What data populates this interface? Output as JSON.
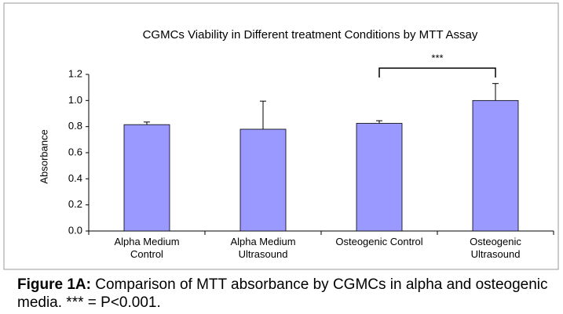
{
  "chart_data": {
    "type": "bar",
    "title": "CGMCs Viability in Different treatment Conditions by MTT Assay",
    "y_label": "Absorbance",
    "categories": [
      "Alpha Medium\nControl",
      "Alpha Medium\nUltrasound",
      "Osteogenic Control",
      "Osteogenic\nUltrasound"
    ],
    "values": [
      0.815,
      0.78,
      0.825,
      1.0
    ],
    "errors": [
      0.02,
      0.215,
      0.02,
      0.13
    ],
    "color": "#9999ff",
    "ylim": [
      0,
      1.2
    ],
    "yticks": [
      {
        "value": 0,
        "label": "0.0"
      },
      0.2,
      0.4,
      0.6,
      0.8,
      {
        "value": 1,
        "label": "1.0"
      },
      1.2
    ],
    "annotation": "***"
  },
  "caption": {
    "label": "Figure 1A:",
    "text": " Comparison of MTT absorbance by CGMCs in alpha and osteogenic media. *** = P<0.001."
  }
}
